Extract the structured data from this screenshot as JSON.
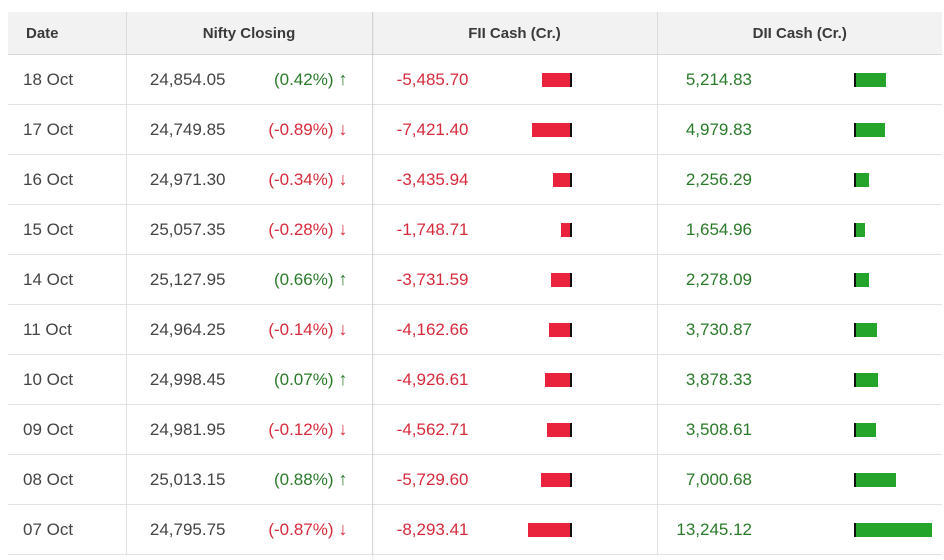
{
  "table": {
    "headers": {
      "date": "Date",
      "nifty": "Nifty Closing",
      "fii": "FII Cash (Cr.)",
      "dii": "DII Cash (Cr.)"
    },
    "rows": [
      {
        "date": "18 Oct",
        "close": "24,854.05",
        "pct": "(0.42%)",
        "dir": "up",
        "fii": "-5,485.70",
        "fii_mag": 5485.7,
        "dii": "5,214.83",
        "dii_mag": 5214.83
      },
      {
        "date": "17 Oct",
        "close": "24,749.85",
        "pct": "(-0.89%)",
        "dir": "down",
        "fii": "-7,421.40",
        "fii_mag": 7421.4,
        "dii": "4,979.83",
        "dii_mag": 4979.83
      },
      {
        "date": "16 Oct",
        "close": "24,971.30",
        "pct": "(-0.34%)",
        "dir": "down",
        "fii": "-3,435.94",
        "fii_mag": 3435.94,
        "dii": "2,256.29",
        "dii_mag": 2256.29
      },
      {
        "date": "15 Oct",
        "close": "25,057.35",
        "pct": "(-0.28%)",
        "dir": "down",
        "fii": "-1,748.71",
        "fii_mag": 1748.71,
        "dii": "1,654.96",
        "dii_mag": 1654.96
      },
      {
        "date": "14 Oct",
        "close": "25,127.95",
        "pct": "(0.66%)",
        "dir": "up",
        "fii": "-3,731.59",
        "fii_mag": 3731.59,
        "dii": "2,278.09",
        "dii_mag": 2278.09
      },
      {
        "date": "11 Oct",
        "close": "24,964.25",
        "pct": "(-0.14%)",
        "dir": "down",
        "fii": "-4,162.66",
        "fii_mag": 4162.66,
        "dii": "3,730.87",
        "dii_mag": 3730.87
      },
      {
        "date": "10 Oct",
        "close": "24,998.45",
        "pct": "(0.07%)",
        "dir": "up",
        "fii": "-4,926.61",
        "fii_mag": 4926.61,
        "dii": "3,878.33",
        "dii_mag": 3878.33
      },
      {
        "date": "09 Oct",
        "close": "24,981.95",
        "pct": "(-0.12%)",
        "dir": "down",
        "fii": "-4,562.71",
        "fii_mag": 4562.71,
        "dii": "3,508.61",
        "dii_mag": 3508.61
      },
      {
        "date": "08 Oct",
        "close": "25,013.15",
        "pct": "(0.88%)",
        "dir": "up",
        "fii": "-5,729.60",
        "fii_mag": 5729.6,
        "dii": "7,000.68",
        "dii_mag": 7000.68
      },
      {
        "date": "07 Oct",
        "close": "24,795.75",
        "pct": "(-0.87%)",
        "dir": "down",
        "fii": "-8,293.41",
        "fii_mag": 8293.41,
        "dii": "13,245.12",
        "dii_mag": 13245.12
      }
    ]
  },
  "icons": {
    "up": "↑",
    "down": "↓"
  },
  "colors": {
    "positive": "#2a7a2a",
    "negative": "#d62b3b",
    "fii_bar": "#e8233b",
    "dii_bar": "#24a42a",
    "header_bg": "#f2f2f2"
  }
}
